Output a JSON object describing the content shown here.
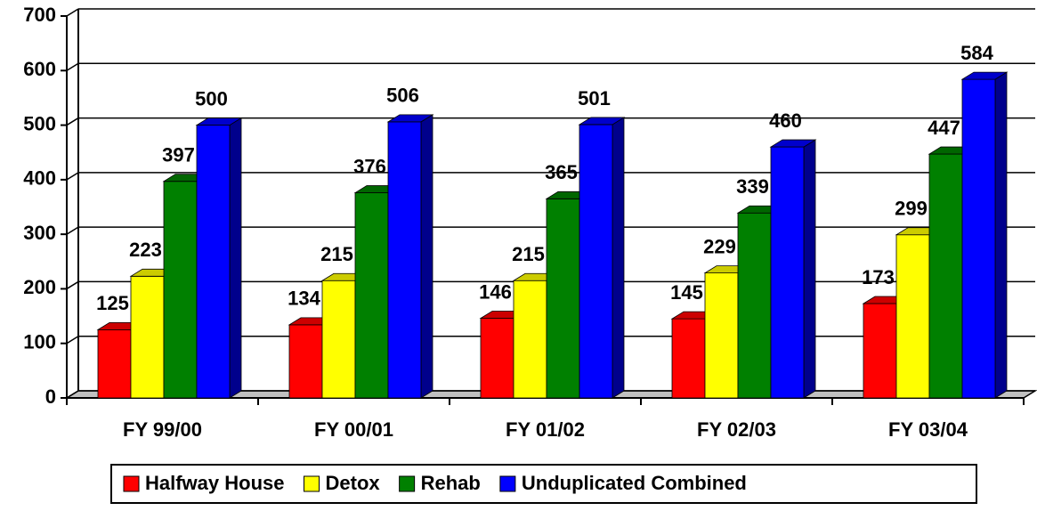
{
  "chart_data": {
    "type": "bar3d",
    "categories": [
      "FY 99/00",
      "FY 00/01",
      "FY 01/02",
      "FY 02/03",
      "FY 03/04"
    ],
    "series": [
      {
        "name": "Halfway House",
        "color": "#ff0000",
        "values": [
          125,
          134,
          146,
          145,
          173
        ]
      },
      {
        "name": "Detox",
        "color": "#ffff00",
        "values": [
          223,
          215,
          215,
          229,
          299
        ]
      },
      {
        "name": "Rehab",
        "color": "#008000",
        "values": [
          397,
          376,
          365,
          339,
          447
        ]
      },
      {
        "name": "Unduplicated Combined",
        "color": "#0000ff",
        "values": [
          500,
          506,
          501,
          460,
          584
        ]
      }
    ],
    "ylim": [
      0,
      700
    ],
    "yticks": [
      0,
      100,
      200,
      300,
      400,
      500,
      600,
      700
    ],
    "grid": true,
    "legend": "bottom"
  }
}
